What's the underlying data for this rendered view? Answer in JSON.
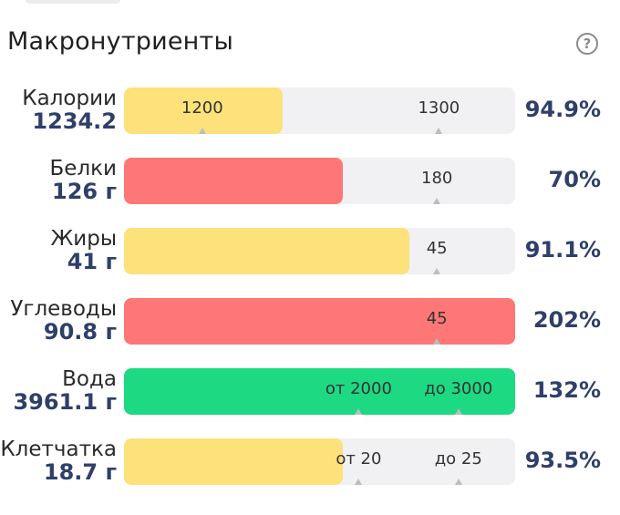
{
  "header": {
    "title": "Макронутриенты",
    "help_glyph": "?",
    "help_icon": "question-circle-icon"
  },
  "colors": {
    "yellow": "#fde17a",
    "red": "#fd7776",
    "green": "#1dd982",
    "track": "#f1f1f3",
    "value_text": "#2e3f6a"
  },
  "rows": [
    {
      "label": "Калории",
      "amount": "1234.2",
      "percent": "94.9%",
      "fill": 0.405,
      "color": "#fde17a",
      "marks": [
        {
          "text": "1200",
          "pos": 0.2
        },
        {
          "text": "1300",
          "pos": 0.805
        }
      ]
    },
    {
      "label": "Белки",
      "amount": "126 г",
      "percent": "70%",
      "fill": 0.56,
      "color": "#fd7776",
      "marks": [
        {
          "text": "180",
          "pos": 0.8
        }
      ]
    },
    {
      "label": "Жиры",
      "amount": "41 г",
      "percent": "91.1%",
      "fill": 0.73,
      "color": "#fde17a",
      "marks": [
        {
          "text": "45",
          "pos": 0.8
        }
      ]
    },
    {
      "label": "Углеводы",
      "amount": "90.8 г",
      "percent": "202%",
      "fill": 1.0,
      "color": "#fd7776",
      "marks": [
        {
          "text": "45",
          "pos": 0.8
        }
      ]
    },
    {
      "label": "Вода",
      "amount": "3961.1 г",
      "percent": "132%",
      "fill": 1.0,
      "color": "#1dd982",
      "marks": [
        {
          "text": "от 2000",
          "pos": 0.6
        },
        {
          "text": "до 3000",
          "pos": 0.855
        }
      ]
    },
    {
      "label": "Клетчатка",
      "amount": "18.7 г",
      "percent": "93.5%",
      "fill": 0.56,
      "color": "#fde17a",
      "marks": [
        {
          "text": "от 20",
          "pos": 0.6
        },
        {
          "text": "до 25",
          "pos": 0.855
        }
      ]
    }
  ]
}
